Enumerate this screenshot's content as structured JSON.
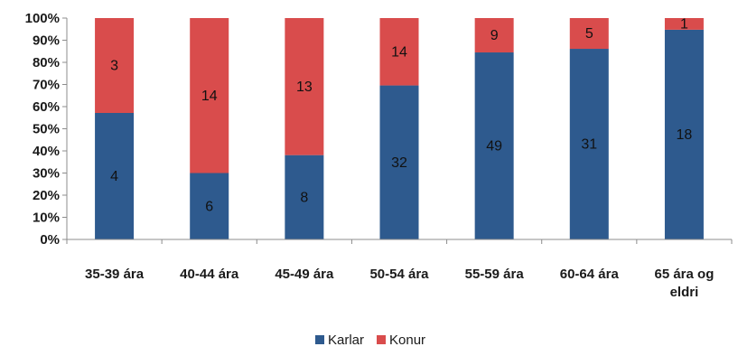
{
  "chart_data": {
    "type": "bar",
    "stacked": true,
    "normalized": true,
    "categories": [
      "35-39 ára",
      "40-44 ára",
      "45-49 ára",
      "50-54 ára",
      "55-59 ára",
      "60-64 ára",
      "65 ára og eldri"
    ],
    "category_lines": [
      [
        "35-39 ára"
      ],
      [
        "40-44 ára"
      ],
      [
        "45-49 ára"
      ],
      [
        "50-54 ára"
      ],
      [
        "55-59 ára"
      ],
      [
        "60-64 ára"
      ],
      [
        "65 ára og",
        "eldri"
      ]
    ],
    "series": [
      {
        "name": "Karlar",
        "color": "#2E5A8E",
        "values": [
          4,
          6,
          8,
          32,
          49,
          31,
          18
        ]
      },
      {
        "name": "Konur",
        "color": "#D94C4C",
        "values": [
          3,
          14,
          13,
          14,
          9,
          5,
          1
        ]
      }
    ],
    "y_ticks": [
      "0%",
      "10%",
      "20%",
      "30%",
      "40%",
      "50%",
      "60%",
      "70%",
      "80%",
      "90%",
      "100%"
    ],
    "ylim": [
      0,
      100
    ],
    "legend_position": "bottom"
  }
}
